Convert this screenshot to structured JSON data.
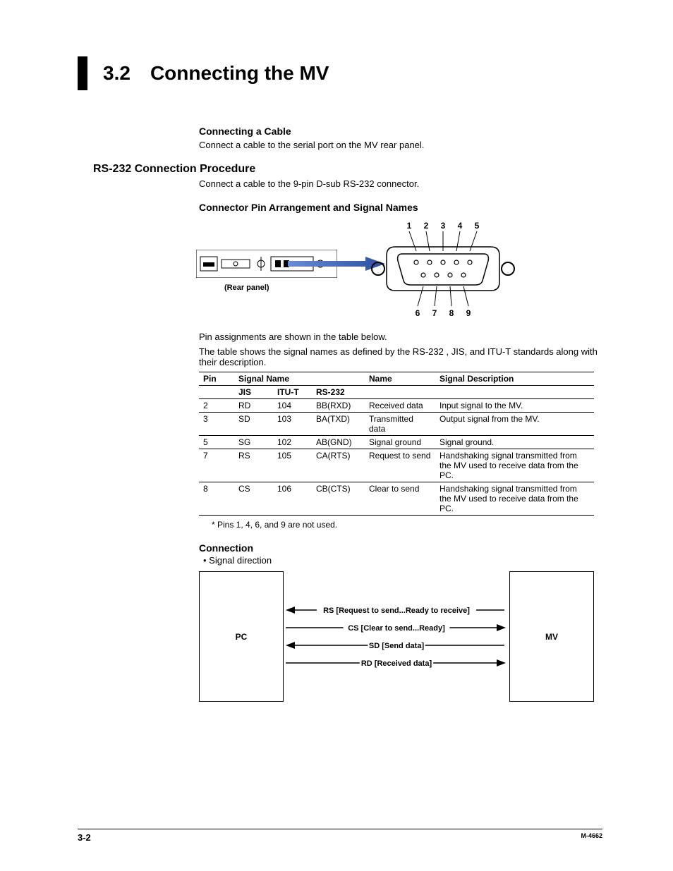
{
  "chapter": {
    "number": "3.2",
    "title": "Connecting the MV"
  },
  "cable": {
    "heading": "Connecting a Cable",
    "text": "Connect a cable to the serial port on the MV rear panel."
  },
  "rs232": {
    "heading": "RS-232 Connection Procedure",
    "text": "Connect a cable to the 9-pin D-sub RS-232 connector."
  },
  "pin_arrangement": {
    "heading": "Connector Pin Arrangement and Signal Names",
    "rear_panel_label": "(Rear panel)",
    "top_pins": [
      "1",
      "2",
      "3",
      "4",
      "5"
    ],
    "bottom_pins": [
      "6",
      "7",
      "8",
      "9"
    ]
  },
  "pin_text": {
    "p1": "Pin assignments are shown in the table below.",
    "p2": "The table shows the signal names as defined by the RS-232 , JIS, and ITU-T standards along with their description."
  },
  "pin_table": {
    "headers": {
      "pin": "Pin",
      "signal_name": "Signal Name",
      "name": "Name",
      "desc": "Signal Description",
      "jis": "JIS",
      "itut": "ITU-T",
      "rs232": "RS-232"
    },
    "rows": [
      {
        "pin": "2",
        "jis": "RD",
        "itut": "104",
        "rs232": "BB(RXD)",
        "name": "Received data",
        "desc": "Input signal to the MV."
      },
      {
        "pin": "3",
        "jis": "SD",
        "itut": "103",
        "rs232": "BA(TXD)",
        "name": "Transmitted data",
        "desc": "Output signal from the MV."
      },
      {
        "pin": "5",
        "jis": "SG",
        "itut": "102",
        "rs232": "AB(GND)",
        "name": "Signal ground",
        "desc": "Signal ground."
      },
      {
        "pin": "7",
        "jis": "RS",
        "itut": "105",
        "rs232": "CA(RTS)",
        "name": "Request to send",
        "desc": "Handshaking signal transmitted from the MV used to receive data from the PC."
      },
      {
        "pin": "8",
        "jis": "CS",
        "itut": "106",
        "rs232": "CB(CTS)",
        "name": "Clear to send",
        "desc": "Handshaking signal transmitted from the MV used to receive data from the PC."
      }
    ],
    "footnote": "* Pins 1, 4, 6, and 9 are not used."
  },
  "connection": {
    "heading": "Connection",
    "bullet": "•   Signal direction",
    "pc_label": "PC",
    "mv_label": "MV",
    "signals": [
      {
        "label": "RS [Request to send...Ready to receive]",
        "pin": "7",
        "dir": "left"
      },
      {
        "label": "CS [Clear to send...Ready]",
        "pin": "8",
        "dir": "right"
      },
      {
        "label": "SD [Send data]",
        "pin": "3",
        "dir": "left"
      },
      {
        "label": "RD [Received data]",
        "pin": "2",
        "dir": "right"
      }
    ]
  },
  "footer": {
    "page": "3-2",
    "doc": "M-4662"
  },
  "colors": {
    "arrow_blue": "#2b4ea0"
  }
}
